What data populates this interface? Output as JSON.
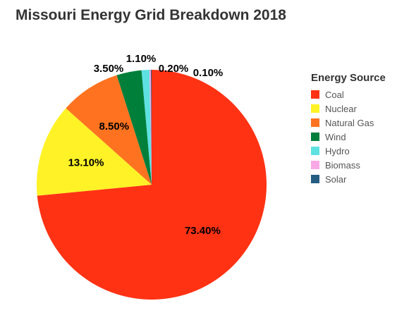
{
  "chart_data": {
    "type": "pie",
    "title": "Missouri Energy Grid Breakdown 2018",
    "legend_title": "Energy Source",
    "legend_position": "right",
    "categories": [
      "Coal",
      "Nuclear",
      "Natural Gas",
      "Wind",
      "Hydro",
      "Biomass",
      "Solar"
    ],
    "values": [
      73.4,
      13.1,
      8.5,
      3.5,
      1.1,
      0.2,
      0.1
    ],
    "labels": [
      "73.40%",
      "13.10%",
      "8.50%",
      "3.50%",
      "1.10%",
      "0.20%",
      "0.10%"
    ],
    "colors": [
      "#ff3214",
      "#fff227",
      "#ff7320",
      "#007f3b",
      "#5ee1e1",
      "#f8a8e6",
      "#265d82"
    ]
  }
}
